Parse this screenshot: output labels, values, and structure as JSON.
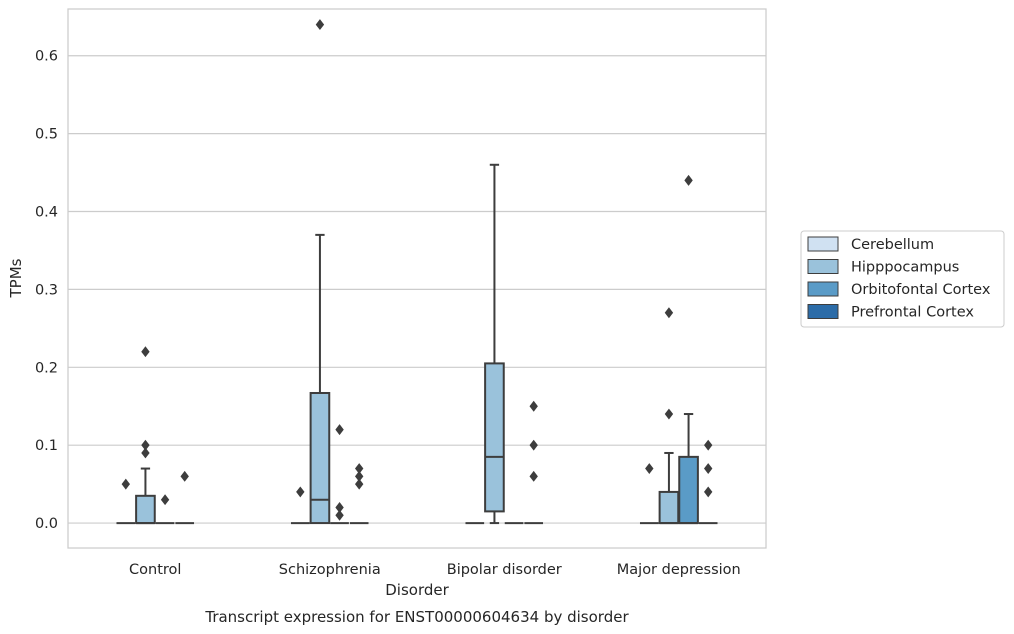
{
  "chart_data": {
    "type": "box",
    "title": "Transcript expression for ENST00000604634 by disorder",
    "xlabel": "Disorder",
    "ylabel": "TPMs",
    "ylim": [
      -0.032,
      0.66
    ],
    "yticks": [
      "0.0",
      "0.1",
      "0.2",
      "0.3",
      "0.4",
      "0.5",
      "0.6"
    ],
    "categories": [
      "Control",
      "Schizophrenia",
      "Bipolar disorder",
      "Major depression"
    ],
    "grid": true,
    "legend_position": "right",
    "series": [
      {
        "name": "Cerebellum",
        "color": "#d0e1f2",
        "boxes": [
          {
            "q1": 0,
            "median": 0,
            "q3": 0,
            "whisker_low": 0,
            "whisker_high": 0,
            "outliers": [
              0.05
            ]
          },
          {
            "q1": 0,
            "median": 0,
            "q3": 0,
            "whisker_low": 0,
            "whisker_high": 0,
            "outliers": [
              0.04
            ]
          },
          {
            "q1": 0,
            "median": 0,
            "q3": 0,
            "whisker_low": 0,
            "whisker_high": 0,
            "outliers": []
          },
          {
            "q1": 0,
            "median": 0,
            "q3": 0,
            "whisker_low": 0,
            "whisker_high": 0,
            "outliers": [
              0.07
            ]
          }
        ]
      },
      {
        "name": "Hipppocampus",
        "color": "#9ac2db",
        "boxes": [
          {
            "q1": 0,
            "median": 0,
            "q3": 0.035,
            "whisker_low": 0,
            "whisker_high": 0.07,
            "outliers": [
              0.09,
              0.1,
              0.22
            ]
          },
          {
            "q1": 0,
            "median": 0.03,
            "q3": 0.167,
            "whisker_low": 0,
            "whisker_high": 0.37,
            "outliers": [
              0.64
            ]
          },
          {
            "q1": 0.015,
            "median": 0.085,
            "q3": 0.205,
            "whisker_low": 0,
            "whisker_high": 0.46,
            "outliers": []
          },
          {
            "q1": 0,
            "median": 0,
            "q3": 0.04,
            "whisker_low": 0,
            "whisker_high": 0.09,
            "outliers": [
              0.14,
              0.27
            ]
          }
        ]
      },
      {
        "name": "Orbitofontal Cortex",
        "color": "#5a9bc7",
        "boxes": [
          {
            "q1": 0,
            "median": 0,
            "q3": 0,
            "whisker_low": 0,
            "whisker_high": 0,
            "outliers": [
              0.03
            ]
          },
          {
            "q1": 0,
            "median": 0,
            "q3": 0,
            "whisker_low": 0,
            "whisker_high": 0,
            "outliers": [
              0.01,
              0.02,
              0.12
            ]
          },
          {
            "q1": 0,
            "median": 0,
            "q3": 0,
            "whisker_low": 0,
            "whisker_high": 0,
            "outliers": []
          },
          {
            "q1": 0,
            "median": 0,
            "q3": 0.085,
            "whisker_low": 0,
            "whisker_high": 0.14,
            "outliers": [
              0.44
            ]
          }
        ]
      },
      {
        "name": "Prefrontal Cortex",
        "color": "#2c6ca8",
        "boxes": [
          {
            "q1": 0,
            "median": 0,
            "q3": 0,
            "whisker_low": 0,
            "whisker_high": 0,
            "outliers": [
              0.06
            ]
          },
          {
            "q1": 0,
            "median": 0,
            "q3": 0,
            "whisker_low": 0,
            "whisker_high": 0,
            "outliers": [
              0.05,
              0.06,
              0.07
            ]
          },
          {
            "q1": 0,
            "median": 0,
            "q3": 0,
            "whisker_low": 0,
            "whisker_high": 0,
            "outliers": [
              0.06,
              0.1,
              0.15
            ]
          },
          {
            "q1": 0,
            "median": 0,
            "q3": 0,
            "whisker_low": 0,
            "whisker_high": 0,
            "outliers": [
              0.04,
              0.07,
              0.1
            ]
          }
        ]
      }
    ]
  }
}
